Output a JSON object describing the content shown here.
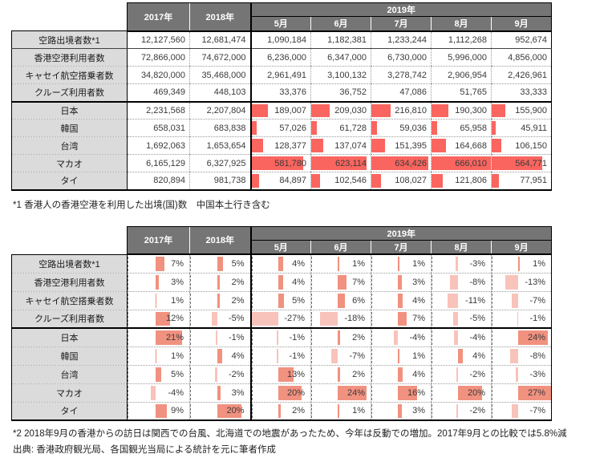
{
  "colors": {
    "header_bg": "#757575",
    "header_text": "#FFFFFF",
    "label_bg": "#DBDBDB",
    "bar_red": "#FA655F",
    "bar_positive": "#F1917F",
    "bar_negative": "#F8C3BB",
    "text": "#3A3A3A"
  },
  "header": {
    "year_cols": [
      "2017年",
      "2018年"
    ],
    "group_label": "2019年",
    "month_cols": [
      "5月",
      "6月",
      "7月",
      "8月",
      "9月"
    ]
  },
  "chart_data": [
    {
      "type": "table",
      "name": "hong-kong-outbound-monthly-absolute",
      "columns": [
        "2017年",
        "2018年",
        "2019年5月",
        "2019年6月",
        "2019年7月",
        "2019年8月",
        "2019年9月"
      ],
      "bar_scale_max": 666010,
      "rows": [
        {
          "label": "空路出境者数*1",
          "bars": false,
          "values": [
            12127560,
            12681474,
            1090184,
            1182381,
            1233244,
            1112268,
            952674
          ]
        },
        {
          "label": "香港空港利用者数",
          "bars": false,
          "values": [
            72866000,
            74672000,
            6236000,
            6347000,
            6730000,
            5996000,
            4856000
          ]
        },
        {
          "label": "キャセイ航空搭乗者数",
          "bars": false,
          "values": [
            34820000,
            35468000,
            2961491,
            3100132,
            3278742,
            2906954,
            2426961
          ]
        },
        {
          "label": "クルーズ利用者数",
          "bars": false,
          "values": [
            469349,
            448103,
            33376,
            36752,
            47086,
            51765,
            33333
          ]
        },
        {
          "label": "日本",
          "bars": true,
          "values": [
            2231568,
            2207804,
            189007,
            209030,
            216810,
            190300,
            155900
          ]
        },
        {
          "label": "韓国",
          "bars": true,
          "values": [
            658031,
            683838,
            57026,
            61728,
            59036,
            65958,
            45911
          ]
        },
        {
          "label": "台湾",
          "bars": true,
          "values": [
            1692063,
            1653654,
            128377,
            137074,
            151395,
            164668,
            106150
          ]
        },
        {
          "label": "マカオ",
          "bars": true,
          "values": [
            6165129,
            6327925,
            581780,
            623114,
            634426,
            666010,
            564771
          ]
        },
        {
          "label": "タイ",
          "bars": true,
          "values": [
            820894,
            981738,
            84897,
            102546,
            108027,
            121806,
            77951
          ]
        }
      ]
    },
    {
      "type": "table",
      "name": "hong-kong-outbound-yoy-percent",
      "columns": [
        "2017年",
        "2018年",
        "2019年5月",
        "2019年6月",
        "2019年7月",
        "2019年8月",
        "2019年9月"
      ],
      "unit": "%",
      "bar_scale": {
        "min": -27,
        "max": 27
      },
      "rows": [
        {
          "label": "空路出境者数*1",
          "values": [
            7,
            5,
            4,
            1,
            1,
            -3,
            1
          ]
        },
        {
          "label": "香港空港利用者数",
          "values": [
            3,
            2,
            4,
            7,
            3,
            -8,
            -13
          ]
        },
        {
          "label": "キャセイ航空搭乗者数",
          "values": [
            1,
            2,
            5,
            6,
            4,
            -11,
            -7
          ]
        },
        {
          "label": "クルーズ利用者数",
          "values": [
            12,
            -5,
            -27,
            -18,
            7,
            -5,
            -1
          ]
        },
        {
          "label": "日本",
          "values": [
            21,
            -1,
            -1,
            2,
            -4,
            -4,
            24
          ]
        },
        {
          "label": "韓国",
          "values": [
            1,
            4,
            -1,
            -7,
            1,
            4,
            -8
          ]
        },
        {
          "label": "台湾",
          "values": [
            5,
            -2,
            13,
            2,
            4,
            -2,
            -3
          ]
        },
        {
          "label": "マカオ",
          "values": [
            -4,
            3,
            20,
            24,
            16,
            20,
            27
          ]
        },
        {
          "label": "タイ",
          "values": [
            9,
            20,
            2,
            1,
            3,
            -2,
            -7
          ]
        }
      ]
    }
  ],
  "footnotes": {
    "note1": "*1 香港人の香港空港を利用した出境(国)数　中国本土行き含む",
    "note2": "*2 2018年9月の香港からの訪日は関西での台風、北海道での地震があったため、今年は反動での増加。2017年9月との比較では5.8%減",
    "source": "出典: 香港政府観光局、各国観光当局による統計を元に筆者作成"
  }
}
